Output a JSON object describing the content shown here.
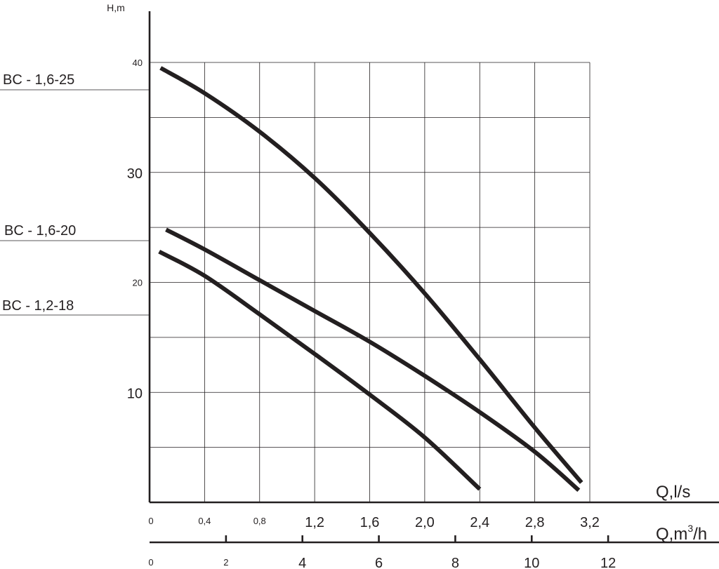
{
  "chart_data": {
    "type": "line",
    "ylabel": "H,m",
    "xlabel": "Q,l/s",
    "x2label_prefix": "Q,m",
    "x2label_sup": "3",
    "x2label_suffix": "/h",
    "xlim": [
      0,
      3.2
    ],
    "ylim": [
      0,
      40
    ],
    "grid": true,
    "y_ticks": [
      {
        "value": 10,
        "label": "10"
      },
      {
        "value": 20,
        "label": "20"
      },
      {
        "value": 30,
        "label": "30"
      },
      {
        "value": 40,
        "label": "40"
      }
    ],
    "x_ticks": [
      {
        "value": 0,
        "label": "0"
      },
      {
        "value": 0.4,
        "label": "0,4"
      },
      {
        "value": 0.8,
        "label": "0,8"
      },
      {
        "value": 1.2,
        "label": "1,2"
      },
      {
        "value": 1.6,
        "label": "1,6"
      },
      {
        "value": 2.0,
        "label": "2,0"
      },
      {
        "value": 2.4,
        "label": "2,4"
      },
      {
        "value": 2.8,
        "label": "2,8"
      },
      {
        "value": 3.2,
        "label": "3,2"
      }
    ],
    "x2_ticks": [
      {
        "value": 0,
        "label": "0"
      },
      {
        "value": 2,
        "label": "2"
      },
      {
        "value": 4,
        "label": "4"
      },
      {
        "value": 6,
        "label": "6"
      },
      {
        "value": 8,
        "label": "8"
      },
      {
        "value": 10,
        "label": "10"
      },
      {
        "value": 12,
        "label": "12"
      }
    ],
    "series": [
      {
        "name": "BC - 1,6-25",
        "x": [
          0.08,
          0.4,
          0.8,
          1.2,
          1.6,
          2.0,
          2.4,
          2.8,
          3.14
        ],
        "y": [
          39.5,
          37.2,
          33.7,
          29.5,
          24.5,
          19.0,
          13.0,
          6.8,
          1.8
        ]
      },
      {
        "name": "BC - 1,6-20",
        "x": [
          0.12,
          0.4,
          0.8,
          1.2,
          1.6,
          2.0,
          2.4,
          2.8,
          3.12
        ],
        "y": [
          24.8,
          23.0,
          20.2,
          17.4,
          14.6,
          11.5,
          8.2,
          4.6,
          1.1
        ]
      },
      {
        "name": "BC - 1,2-18",
        "x": [
          0.07,
          0.4,
          0.8,
          1.2,
          1.6,
          2.0,
          2.4
        ],
        "y": [
          22.8,
          20.6,
          17.1,
          13.5,
          9.8,
          5.9,
          1.2
        ]
      }
    ]
  }
}
